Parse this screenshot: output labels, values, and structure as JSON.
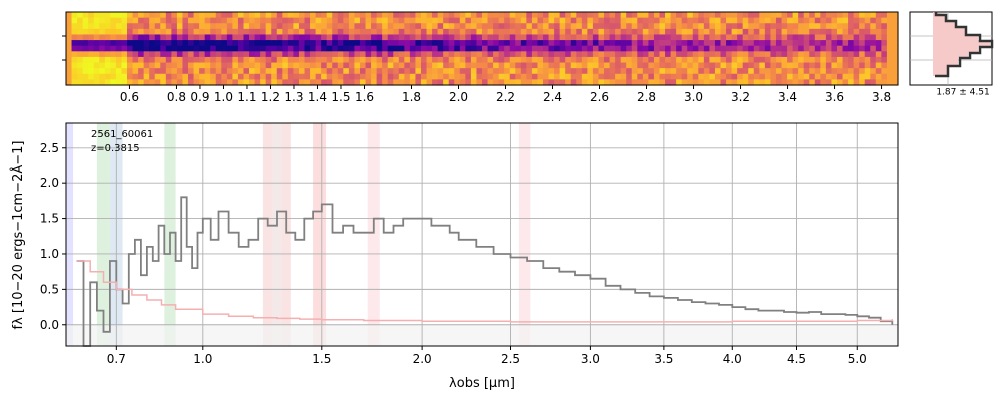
{
  "chart_data": [
    {
      "type": "heatmap",
      "panel": "2D spectrum",
      "colormap": "plasma",
      "x_ticks": [
        "0.6",
        "0.8",
        "0.9",
        "1.0",
        "1.1",
        "1.2",
        "1.3",
        "1.4",
        "1.5",
        "1.6",
        "1.8",
        "2.0",
        "2.2",
        "2.4",
        "2.6",
        "2.8",
        "3.0",
        "3.2",
        "3.4",
        "3.6",
        "3.8"
      ],
      "x_tick_values": [
        0.6,
        0.8,
        0.9,
        1.0,
        1.1,
        1.2,
        1.3,
        1.4,
        1.5,
        1.6,
        1.8,
        2.0,
        2.2,
        2.4,
        2.6,
        2.8,
        3.0,
        3.2,
        3.4,
        3.6,
        3.8
      ],
      "xlim": [
        0.33,
        3.87
      ],
      "trace_row_center": 0.45
    },
    {
      "type": "line",
      "panel": "cross-dispersion profile",
      "label": "1.87 ± 4.51",
      "fill_color": "#f7caca",
      "line_color": "#333333"
    },
    {
      "type": "line",
      "panel": "1D spectrum",
      "annotation": [
        "2561_60061",
        "z=0.3815"
      ],
      "xlabel": "λobs [μm]",
      "ylabel": "fλ [10−20 ergs−1cm−2Å−1]",
      "x_tick_labels": [
        "0.7",
        "1.0",
        "1.5",
        "2.0",
        "2.5",
        "3.0",
        "3.5",
        "4.0",
        "4.5",
        "5.0"
      ],
      "x_tick_values": [
        0.7,
        1.0,
        1.5,
        2.0,
        2.5,
        3.0,
        3.5,
        4.0,
        4.5,
        5.0
      ],
      "y_tick_labels": [
        "0.0",
        "0.5",
        "1.0",
        "1.5",
        "2.0",
        "2.5"
      ],
      "y_tick_values": [
        0.0,
        0.5,
        1.0,
        1.5,
        2.0,
        2.5
      ],
      "xlim": [
        0.55,
        5.35
      ],
      "ylim": [
        -0.3,
        2.85
      ],
      "x_scale": "sqrt",
      "grid": true,
      "series": [
        {
          "color": "#808080",
          "x": [
            0.58,
            0.6,
            0.62,
            0.64,
            0.66,
            0.68,
            0.7,
            0.72,
            0.74,
            0.76,
            0.78,
            0.8,
            0.82,
            0.84,
            0.86,
            0.88,
            0.9,
            0.92,
            0.94,
            0.96,
            0.98,
            1.0,
            1.03,
            1.06,
            1.1,
            1.14,
            1.18,
            1.22,
            1.26,
            1.3,
            1.34,
            1.38,
            1.42,
            1.46,
            1.5,
            1.55,
            1.6,
            1.65,
            1.7,
            1.75,
            1.8,
            1.85,
            1.9,
            1.95,
            2.0,
            2.05,
            2.1,
            2.15,
            2.2,
            2.3,
            2.4,
            2.5,
            2.6,
            2.7,
            2.8,
            2.9,
            3.0,
            3.1,
            3.2,
            3.3,
            3.4,
            3.5,
            3.6,
            3.7,
            3.8,
            3.9,
            4.0,
            4.1,
            4.2,
            4.3,
            4.4,
            4.5,
            4.6,
            4.7,
            4.8,
            4.9,
            5.0,
            5.1,
            5.2,
            5.3
          ],
          "y": [
            0.9,
            -0.3,
            0.6,
            0.2,
            -0.1,
            0.9,
            0.5,
            0.3,
            1.0,
            1.2,
            0.7,
            1.1,
            0.9,
            1.4,
            1.0,
            1.3,
            0.9,
            1.8,
            1.1,
            0.8,
            1.3,
            1.5,
            1.2,
            1.6,
            1.3,
            1.1,
            1.2,
            1.5,
            1.4,
            1.6,
            1.3,
            1.2,
            1.5,
            1.6,
            1.7,
            1.3,
            1.4,
            1.3,
            1.3,
            1.5,
            1.3,
            1.4,
            1.5,
            1.5,
            1.5,
            1.4,
            1.4,
            1.3,
            1.2,
            1.1,
            1.0,
            0.95,
            0.9,
            0.8,
            0.75,
            0.7,
            0.65,
            0.55,
            0.5,
            0.45,
            0.4,
            0.38,
            0.35,
            0.32,
            0.3,
            0.28,
            0.25,
            0.22,
            0.2,
            0.2,
            0.18,
            0.17,
            0.18,
            0.15,
            0.15,
            0.14,
            0.12,
            0.1,
            0.05,
            0.0
          ]
        },
        {
          "color": "#f4b0b0",
          "x": [
            0.58,
            0.62,
            0.66,
            0.7,
            0.75,
            0.8,
            0.85,
            0.9,
            1.0,
            1.1,
            1.2,
            1.3,
            1.4,
            1.5,
            1.7,
            2.0,
            2.5,
            3.0,
            3.5,
            4.0,
            4.5,
            5.0,
            5.3
          ],
          "y": [
            0.9,
            0.75,
            0.6,
            0.5,
            0.42,
            0.35,
            0.28,
            0.22,
            0.15,
            0.12,
            0.1,
            0.09,
            0.08,
            0.07,
            0.06,
            0.05,
            0.04,
            0.04,
            0.04,
            0.05,
            0.05,
            0.06,
            0.08
          ]
        }
      ],
      "shaded_bands": [
        {
          "x0": 0.55,
          "x1": 0.57,
          "color": "#b0b0ff"
        },
        {
          "x0": 0.64,
          "x1": 0.68,
          "color": "#a0d8a0"
        },
        {
          "x0": 0.68,
          "x1": 0.72,
          "color": "#a0c0e0"
        },
        {
          "x0": 0.86,
          "x1": 0.9,
          "color": "#a0d8a0"
        },
        {
          "x0": 1.24,
          "x1": 1.28,
          "color": "#f0b0b0"
        },
        {
          "x0": 1.28,
          "x1": 1.32,
          "color": "#e0c0c0"
        },
        {
          "x0": 1.32,
          "x1": 1.36,
          "color": "#f0b0b0"
        },
        {
          "x0": 1.46,
          "x1": 1.52,
          "color": "#f8a0a0"
        },
        {
          "x0": 1.72,
          "x1": 1.78,
          "color": "#f8c0c8"
        },
        {
          "x0": 2.55,
          "x1": 2.62,
          "color": "#f8c0c8"
        }
      ]
    }
  ]
}
